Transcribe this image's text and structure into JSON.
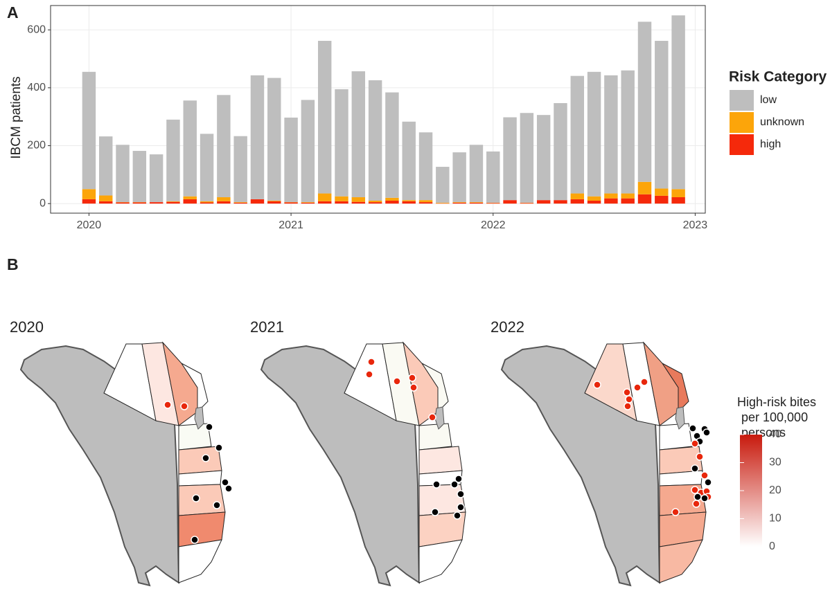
{
  "chart_data": [
    {
      "type": "bar",
      "label": "A",
      "stacked": true,
      "ylabel": "IBCM patients",
      "legend_title": "Risk Category",
      "legend": "right",
      "grid": true,
      "categories": [
        null,
        null,
        null,
        null,
        null,
        null,
        null,
        null,
        null,
        null,
        null,
        null,
        null,
        null,
        null,
        null,
        null,
        null,
        null,
        null,
        null,
        null,
        null,
        null,
        null,
        null,
        null,
        null,
        null,
        null,
        null,
        null,
        null,
        null,
        null,
        null
      ],
      "series": [
        {
          "name": "low",
          "color": "#bebebe",
          "values": [
            405,
            204,
            198,
            177,
            165,
            282,
            331,
            233,
            353,
            228,
            428,
            424,
            292,
            353,
            527,
            370,
            435,
            416,
            364,
            271,
            234,
            124,
            172,
            198,
            177,
            286,
            310,
            294,
            335,
            406,
            430,
            408,
            425,
            553,
            510,
            600
          ]
        },
        {
          "name": "unknown",
          "color": "#fca50a",
          "values": [
            35,
            20,
            1,
            1,
            0,
            2,
            10,
            4,
            14,
            2,
            0,
            2,
            1,
            2,
            27,
            17,
            16,
            5,
            10,
            4,
            7,
            2,
            2,
            2,
            1,
            0,
            1,
            0,
            0,
            20,
            15,
            17,
            17,
            43,
            25,
            28
          ]
        },
        {
          "name": "high",
          "color": "#f5290b",
          "values": [
            15,
            8,
            4,
            4,
            5,
            6,
            15,
            4,
            8,
            3,
            15,
            8,
            4,
            3,
            8,
            8,
            6,
            5,
            10,
            8,
            5,
            1,
            3,
            3,
            2,
            12,
            2,
            12,
            12,
            15,
            10,
            18,
            18,
            32,
            27,
            22
          ]
        }
      ],
      "xlim": [
        2019.81,
        2023.05
      ],
      "xticks": [
        2020,
        2021,
        2022,
        2023
      ],
      "ylim": [
        -33,
        684
      ],
      "yticks": [
        0,
        200,
        400,
        600
      ]
    },
    {
      "type": "map",
      "label": "B",
      "panels": [
        "2020",
        "2021",
        "2022"
      ],
      "colorbar": {
        "title": [
          "High-risk bites",
          "per 100,000",
          "persons"
        ],
        "lim": [
          0,
          40
        ],
        "ticks": [
          0,
          10,
          20,
          30,
          40
        ],
        "colors": [
          "#ffffff",
          "#c81a0d"
        ]
      }
    }
  ]
}
